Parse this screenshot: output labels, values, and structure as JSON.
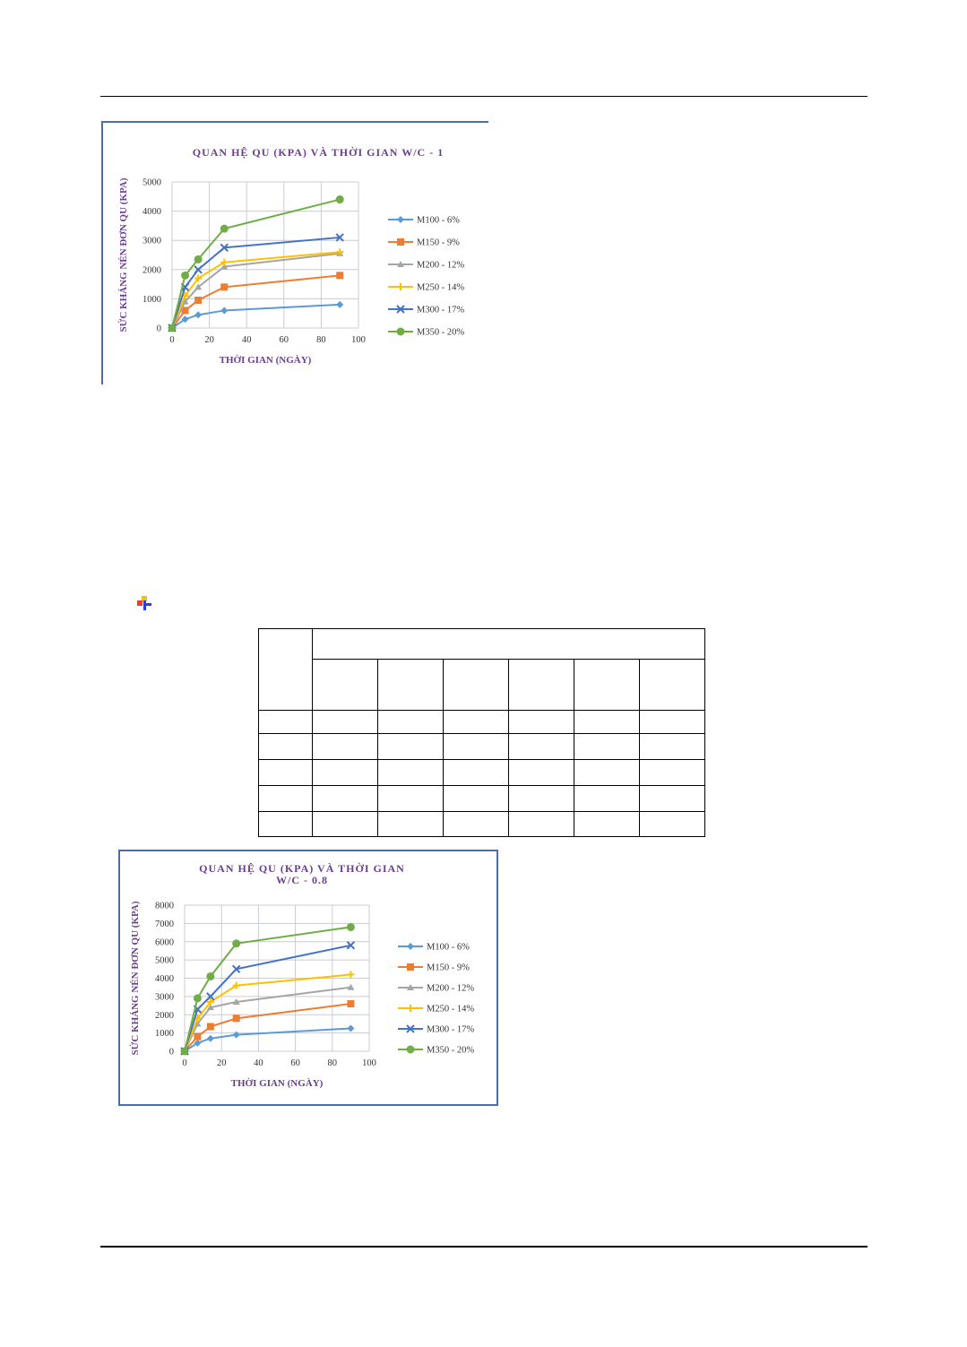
{
  "chart_data": [
    {
      "type": "line",
      "title": "QUAN HỆ QU (KPA) VÀ THỜI GIAN W/C - 1",
      "xlabel": "THỜI GIAN (NGÀY)",
      "ylabel": "SỨC KHÁNG NÉN ĐƠN QU (KPA)",
      "xlim": [
        0,
        100
      ],
      "ylim": [
        0,
        5000
      ],
      "xticks": [
        "0",
        "20",
        "40",
        "60",
        "80",
        "100"
      ],
      "yticks": [
        "0",
        "1000",
        "2000",
        "3000",
        "4000",
        "5000"
      ],
      "grid": true,
      "legend": "right",
      "series": [
        {
          "name": "M100 - 6%",
          "color": "#5b9bd5",
          "marker": "diamond",
          "x": [
            0,
            7,
            14,
            28,
            90
          ],
          "y": [
            0,
            300,
            450,
            600,
            800
          ]
        },
        {
          "name": "M150 - 9%",
          "color": "#ed7d31",
          "marker": "square",
          "x": [
            0,
            7,
            14,
            28,
            90
          ],
          "y": [
            0,
            600,
            950,
            1400,
            1800
          ]
        },
        {
          "name": "M200 - 12%",
          "color": "#a5a5a5",
          "marker": "triangle",
          "x": [
            0,
            7,
            14,
            28,
            90
          ],
          "y": [
            0,
            900,
            1400,
            2100,
            2550
          ]
        },
        {
          "name": "M250 - 14%",
          "color": "#ffc000",
          "marker": "cross",
          "x": [
            0,
            7,
            14,
            28,
            90
          ],
          "y": [
            0,
            1100,
            1700,
            2250,
            2600
          ]
        },
        {
          "name": "M300 - 17%",
          "color": "#4472c4",
          "marker": "x",
          "x": [
            0,
            7,
            14,
            28,
            90
          ],
          "y": [
            0,
            1400,
            2000,
            2750,
            3100
          ]
        },
        {
          "name": "M350 - 20%",
          "color": "#70ad47",
          "marker": "circle",
          "x": [
            0,
            7,
            14,
            28,
            90
          ],
          "y": [
            0,
            1800,
            2350,
            3400,
            4400
          ]
        }
      ]
    },
    {
      "type": "line",
      "title": "QUAN HỆ QU (KPA) VÀ THỜI GIAN",
      "subtitle": "W/C - 0.8",
      "xlabel": "THỜI GIAN (NGÀY)",
      "ylabel": "SỨC KHÁNG NÉN ĐƠN QU (KPA)",
      "xlim": [
        0,
        100
      ],
      "ylim": [
        0,
        8000
      ],
      "xticks": [
        "0",
        "20",
        "40",
        "60",
        "80",
        "100"
      ],
      "yticks": [
        "0",
        "1000",
        "2000",
        "3000",
        "4000",
        "5000",
        "6000",
        "7000",
        "8000"
      ],
      "grid": true,
      "legend": "right",
      "series": [
        {
          "name": "M100 - 6%",
          "color": "#5b9bd5",
          "marker": "diamond",
          "x": [
            0,
            7,
            14,
            28,
            90
          ],
          "y": [
            0,
            450,
            700,
            900,
            1250
          ]
        },
        {
          "name": "M150 - 9%",
          "color": "#ed7d31",
          "marker": "square",
          "x": [
            0,
            7,
            14,
            28,
            90
          ],
          "y": [
            0,
            800,
            1350,
            1800,
            2600
          ]
        },
        {
          "name": "M200 - 12%",
          "color": "#a5a5a5",
          "marker": "triangle",
          "x": [
            0,
            7,
            14,
            28,
            90
          ],
          "y": [
            0,
            1500,
            2400,
            2700,
            3500
          ]
        },
        {
          "name": "M250 - 14%",
          "color": "#ffc000",
          "marker": "cross",
          "x": [
            0,
            7,
            14,
            28,
            90
          ],
          "y": [
            0,
            1800,
            2700,
            3600,
            4200
          ]
        },
        {
          "name": "M300 - 17%",
          "color": "#4472c4",
          "marker": "x",
          "x": [
            0,
            7,
            14,
            28,
            90
          ],
          "y": [
            0,
            2300,
            3000,
            4500,
            5800
          ]
        },
        {
          "name": "M350 - 20%",
          "color": "#70ad47",
          "marker": "circle",
          "x": [
            0,
            7,
            14,
            28,
            90
          ],
          "y": [
            0,
            2900,
            4100,
            5900,
            6800
          ]
        }
      ]
    }
  ]
}
